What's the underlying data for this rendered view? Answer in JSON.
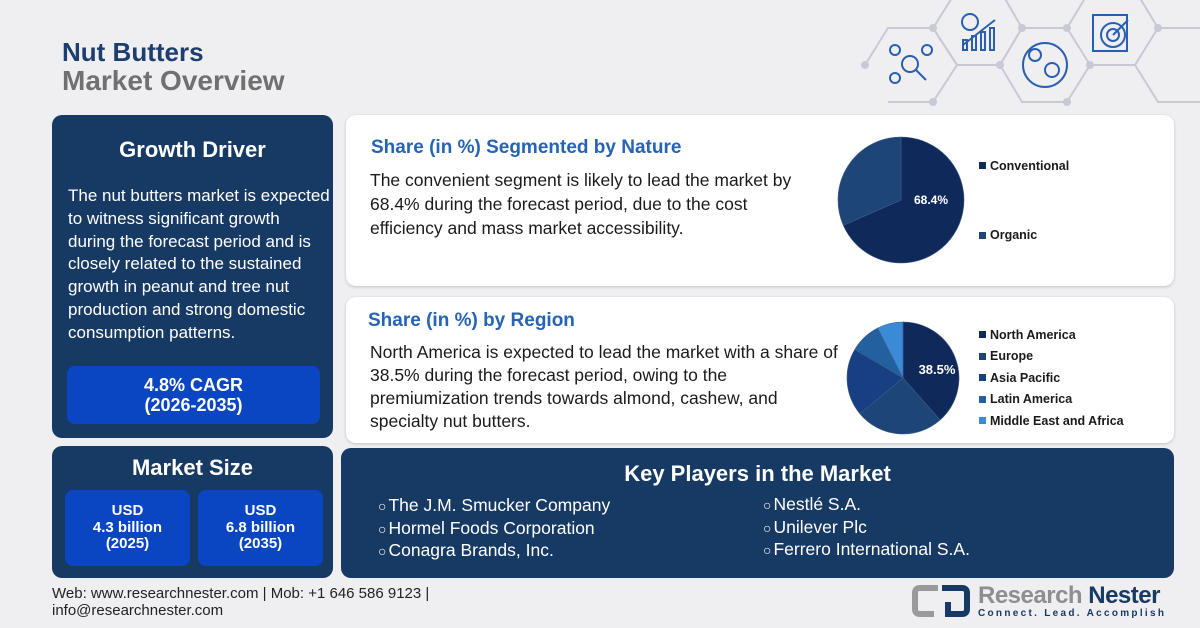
{
  "header": {
    "title": "Nut Butters",
    "subtitle": "Market Overview",
    "icons": [
      "network-analysis-icon",
      "growth-chart-icon",
      "global-commerce-icon",
      "target-report-icon"
    ]
  },
  "growth_driver": {
    "title": "Growth Driver",
    "text": "The nut butters market is expected to witness significant growth during the forecast period and is closely related to the sustained growth in peanut and tree nut production and strong domestic consumption patterns.",
    "cagr_line1": "4.8% CAGR",
    "cagr_line2": "(2026-2035)"
  },
  "market_size": {
    "title": "Market Size",
    "items": [
      {
        "currency": "USD",
        "value": "4.3 billion",
        "year": "(2025)"
      },
      {
        "currency": "USD",
        "value": "6.8 billion",
        "year": "(2035)"
      }
    ]
  },
  "nature": {
    "title": "Share (in %) Segmented by Nature",
    "text": "The convenient segment is likely to lead the market by 68.4% during the forecast period, due to the cost efficiency and mass market accessibility."
  },
  "region": {
    "title": "Share (in %) by Region",
    "text": "North America is expected to lead the market with a share of 38.5% during the forecast period, owing to the premiumization trends towards almond, cashew, and specialty nut butters."
  },
  "chart_data": [
    {
      "type": "pie",
      "categories": [
        "Conventional",
        "Organic"
      ],
      "values": [
        68.4,
        31.6
      ],
      "colors": [
        "#0f2a5a",
        "#1e4577"
      ],
      "data_labels": [
        "68.4%",
        ""
      ],
      "legend_position": "right"
    },
    {
      "type": "pie",
      "categories": [
        "North America",
        "Europe",
        "Asia Pacific",
        "Latin America",
        "Middle East and Africa"
      ],
      "values": [
        38.5,
        25.5,
        19.5,
        9,
        7.5
      ],
      "colors": [
        "#0f2a5a",
        "#1e4577",
        "#173f82",
        "#22609f",
        "#3b8ad8"
      ],
      "data_labels": [
        "38.5%",
        "",
        "",
        "",
        ""
      ],
      "legend_position": "right"
    }
  ],
  "key_players": {
    "title": "Key Players in the Market",
    "left": [
      "The J.M. Smucker Company",
      "Hormel Foods Corporation",
      "Conagra Brands, Inc."
    ],
    "right": [
      "Nestlé S.A.",
      "Unilever Plc",
      "Ferrero International S.A."
    ]
  },
  "footer": {
    "line1": "Web: www.researchnester.com | Mob: +1 646 586 9123 |",
    "line2": "info@researchnester.com"
  },
  "logo": {
    "name1": "Research",
    "name2": "Nester",
    "tagline": "Connect. Lead. Accomplish"
  }
}
